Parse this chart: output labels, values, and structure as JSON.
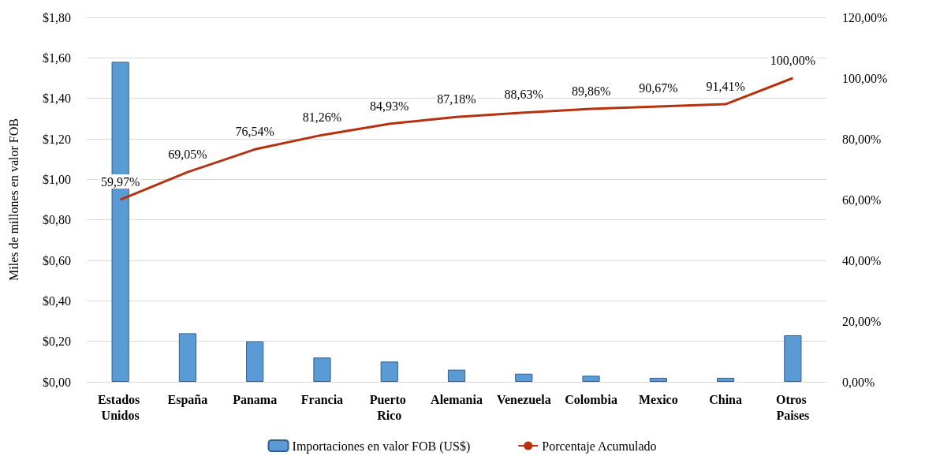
{
  "chart_data": {
    "type": "bar",
    "ylabel": "Miles de millones en valor FOB",
    "categories": [
      "Estados Unidos",
      "España",
      "Panama",
      "Francia",
      "Puerto Rico",
      "Alemania",
      "Venezuela",
      "Colombia",
      "Mexico",
      "China",
      "Otros Paises"
    ],
    "series": [
      {
        "name": "Importaciones en valor FOB (US$)",
        "color": "#5b9bd5",
        "values": [
          1.58,
          0.24,
          0.2,
          0.12,
          0.1,
          0.06,
          0.04,
          0.03,
          0.02,
          0.02,
          0.23
        ]
      },
      {
        "name": "Porcentaje Acumulado",
        "type": "line",
        "axis": "y2",
        "color": "#b5310f",
        "marker": "none",
        "values": [
          59.97,
          69.05,
          76.54,
          81.26,
          84.93,
          87.18,
          88.63,
          89.86,
          90.67,
          91.41,
          100.0
        ],
        "value_labels": [
          "59,97%",
          "69,05%",
          "76,54%",
          "81,26%",
          "84,93%",
          "87,18%",
          "88,63%",
          "89,86%",
          "90,67%",
          "91,41%",
          "100,00%"
        ]
      }
    ],
    "ylim": [
      0,
      1.8
    ],
    "yticks": [
      {
        "value": 0,
        "label": "$0,00"
      },
      {
        "value": 0.2,
        "label": "$0,20"
      },
      {
        "value": 0.4,
        "label": "$0,40"
      },
      {
        "value": 0.6,
        "label": "$0,60"
      },
      {
        "value": 0.8,
        "label": "$0,80"
      },
      {
        "value": 1.0,
        "label": "$1,00"
      },
      {
        "value": 1.2,
        "label": "$1,20"
      },
      {
        "value": 1.4,
        "label": "$1,40"
      },
      {
        "value": 1.6,
        "label": "$1,60"
      },
      {
        "value": 1.8,
        "label": "$1,80"
      }
    ],
    "y2lim": [
      0,
      120
    ],
    "y2ticks": [
      {
        "value": 0,
        "label": "0,00%"
      },
      {
        "value": 20,
        "label": "20,00%"
      },
      {
        "value": 40,
        "label": "40,00%"
      },
      {
        "value": 60,
        "label": "60,00%"
      },
      {
        "value": 80,
        "label": "80,00%"
      },
      {
        "value": 100,
        "label": "100,00%"
      },
      {
        "value": 120,
        "label": "120,00%"
      }
    ],
    "grid": "y",
    "legend": "bottom"
  }
}
